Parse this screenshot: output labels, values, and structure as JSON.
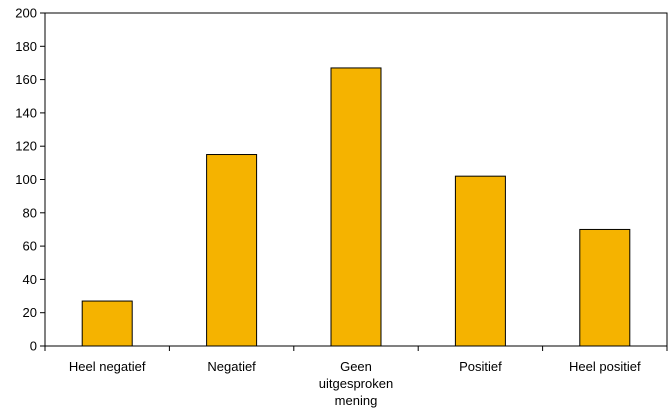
{
  "chart_data": {
    "type": "bar",
    "categories": [
      "Heel negatief",
      "Negatief",
      "Geen uitgesproken mening",
      "Positief",
      "Heel positief"
    ],
    "category_lines": [
      [
        "Heel negatief"
      ],
      [
        "Negatief"
      ],
      [
        "Geen",
        "uitgesproken",
        "mening"
      ],
      [
        "Positief"
      ],
      [
        "Heel positief"
      ]
    ],
    "values": [
      27,
      115,
      167,
      102,
      70
    ],
    "title": "",
    "xlabel": "",
    "ylabel": "",
    "ylim": [
      0,
      200
    ],
    "yticks": [
      0,
      20,
      40,
      60,
      80,
      100,
      120,
      140,
      160,
      180,
      200
    ],
    "grid": false,
    "legend": "none",
    "bar_color": "#F5B300",
    "bar_edge_color": "#000000"
  }
}
